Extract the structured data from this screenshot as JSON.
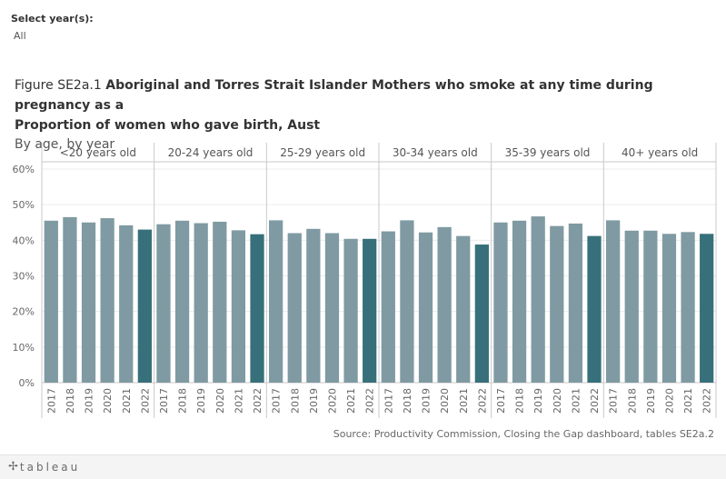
{
  "filter": {
    "label": "Select year(s):",
    "value": "All"
  },
  "title": {
    "prefix": "Figure SE2a.1",
    "line1": "Aboriginal and Torres Strait Islander Mothers who smoke at any time during pregnancy as a",
    "line2": "Proportion of women who gave birth, Aust",
    "subtitle": "By age, by year"
  },
  "source": "Source: Productivity Commission, Closing the Gap dashboard, tables SE2a.2",
  "footer": {
    "logo_text": "tableau"
  },
  "colors": {
    "bar": "#7f9aa2",
    "bar_highlight": "#37707a",
    "grid": "#ececec",
    "divider": "#c9c9c9"
  },
  "chart_data": {
    "type": "bar",
    "ylim": [
      0,
      0.6
    ],
    "y_ticks": [
      "60%",
      "50%",
      "40%",
      "30%",
      "20%",
      "10%",
      "0%"
    ],
    "panels": [
      {
        "label": "<20 years old",
        "x": [
          "2017",
          "2018",
          "2019",
          "2020",
          "2021",
          "2022"
        ],
        "values": [
          0.455,
          0.465,
          0.45,
          0.462,
          0.442,
          0.43
        ]
      },
      {
        "label": "20-24 years old",
        "x": [
          "2017",
          "2018",
          "2019",
          "2020",
          "2021",
          "2022"
        ],
        "values": [
          0.445,
          0.455,
          0.448,
          0.452,
          0.428,
          0.417
        ]
      },
      {
        "label": "25-29 years old",
        "x": [
          "2017",
          "2018",
          "2019",
          "2020",
          "2021",
          "2022"
        ],
        "values": [
          0.456,
          0.42,
          0.432,
          0.42,
          0.404,
          0.404
        ]
      },
      {
        "label": "30-34 years old",
        "x": [
          "2017",
          "2018",
          "2019",
          "2020",
          "2021",
          "2022"
        ],
        "values": [
          0.425,
          0.456,
          0.422,
          0.437,
          0.412,
          0.388
        ]
      },
      {
        "label": "35-39 years old",
        "x": [
          "2017",
          "2018",
          "2019",
          "2020",
          "2021",
          "2022"
        ],
        "values": [
          0.45,
          0.455,
          0.467,
          0.44,
          0.447,
          0.412
        ]
      },
      {
        "label": "40+ years old",
        "x": [
          "2017",
          "2018",
          "2019",
          "2020",
          "2021",
          "2022"
        ],
        "values": [
          0.456,
          0.427,
          0.427,
          0.418,
          0.423,
          0.418
        ]
      }
    ]
  }
}
